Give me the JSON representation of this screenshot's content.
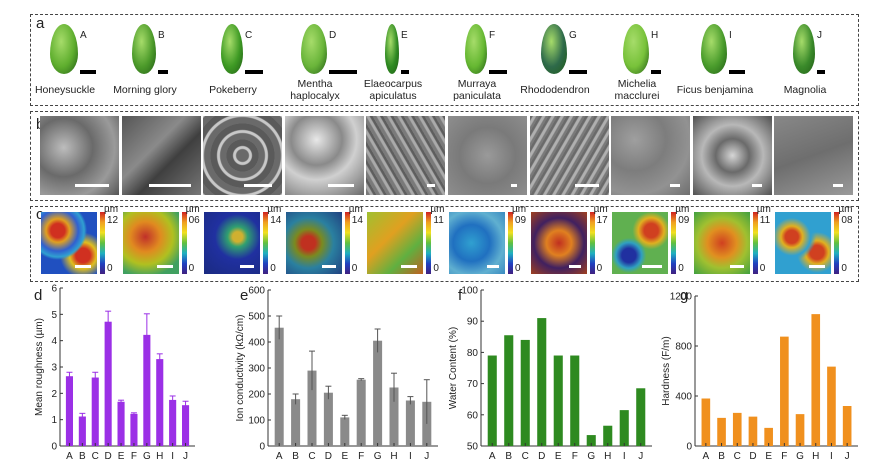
{
  "panels": {
    "a": "a",
    "b": "b",
    "c": "c",
    "d": "d",
    "e": "e",
    "f": "f",
    "g": "g"
  },
  "leaves": [
    {
      "letter": "A",
      "name": "Honeysuckle",
      "color": "#5fae2e"
    },
    {
      "letter": "B",
      "name": "Morning glory",
      "color": "#4c9a2a"
    },
    {
      "letter": "C",
      "name": "Pokeberry",
      "color": "#3e9a24"
    },
    {
      "letter": "D",
      "name": "Mentha\nhaplocalyx",
      "color": "#6ab53a"
    },
    {
      "letter": "E",
      "name": "Elaeocarpus\napiculatus",
      "color": "#2f8a22"
    },
    {
      "letter": "F",
      "name": "Murraya\npaniculata",
      "color": "#66b832"
    },
    {
      "letter": "G",
      "name": "Rhododendron",
      "color": "#2e6a4a"
    },
    {
      "letter": "H",
      "name": "Michelia\nmacclurei",
      "color": "#78c23a"
    },
    {
      "letter": "I",
      "name": "Ficus benjamina",
      "color": "#4a9c2c"
    },
    {
      "letter": "J",
      "name": "Magnolia",
      "color": "#3a8a2a"
    }
  ],
  "afm": {
    "unit": "µm",
    "max_labels": [
      "12",
      "06",
      "14",
      "14",
      "11",
      "09",
      "17",
      "09",
      "11",
      "08"
    ],
    "min_label": "0"
  },
  "chart_data": [
    {
      "type": "bar",
      "panel": "d",
      "categories": [
        "A",
        "B",
        "C",
        "D",
        "E",
        "F",
        "G",
        "H",
        "I",
        "J"
      ],
      "values": [
        2.65,
        1.12,
        2.6,
        4.72,
        1.68,
        1.22,
        4.22,
        3.3,
        1.75,
        1.55
      ],
      "errors": [
        0.15,
        0.12,
        0.2,
        0.4,
        0.06,
        0.04,
        0.8,
        0.2,
        0.15,
        0.15
      ],
      "ylabel": "Mean roughness (µm)",
      "ylim": [
        0,
        6
      ],
      "yticks": [
        "0",
        "1",
        "2",
        "3",
        "4",
        "5",
        "6"
      ],
      "color": "#9b30e6"
    },
    {
      "type": "bar",
      "panel": "e",
      "categories": [
        "A",
        "B",
        "C",
        "D",
        "E",
        "F",
        "G",
        "H",
        "I",
        "J"
      ],
      "values": [
        455,
        180,
        290,
        205,
        110,
        255,
        405,
        225,
        175,
        170
      ],
      "errors": [
        45,
        20,
        75,
        25,
        8,
        4,
        45,
        55,
        15,
        85
      ],
      "ylabel": "Ion conductivity (kΩ/cm)",
      "ylim": [
        0,
        600
      ],
      "yticks": [
        "0",
        "100",
        "200",
        "300",
        "400",
        "500",
        "600"
      ],
      "color": "#8a8a8a"
    },
    {
      "type": "bar",
      "panel": "f",
      "categories": [
        "A",
        "B",
        "C",
        "D",
        "E",
        "F",
        "G",
        "H",
        "I",
        "J"
      ],
      "values": [
        79,
        85.5,
        84,
        91,
        79,
        79,
        53.5,
        56.5,
        61.5,
        68.5
      ],
      "ylabel": "Water Content (%)",
      "ylim": [
        50,
        100
      ],
      "yticks": [
        "50",
        "60",
        "70",
        "80",
        "90",
        "100"
      ],
      "color": "#2e8a20"
    },
    {
      "type": "bar",
      "panel": "g",
      "categories": [
        "A",
        "B",
        "C",
        "D",
        "E",
        "F",
        "G",
        "H",
        "I",
        "J"
      ],
      "values": [
        380,
        225,
        265,
        235,
        145,
        875,
        255,
        1055,
        635,
        320
      ],
      "ylabel": "Hardness (F/m)",
      "ylim": [
        0,
        1200
      ],
      "yticks": [
        "0",
        "400",
        "800",
        "1200"
      ],
      "color": "#f0901e"
    }
  ]
}
